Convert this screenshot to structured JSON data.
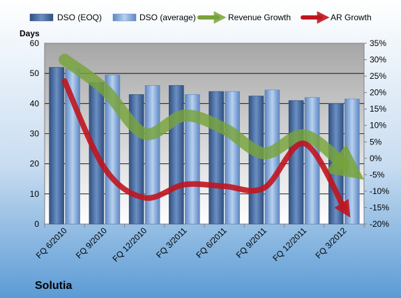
{
  "chart_data": {
    "type": "bar",
    "title": "Solutia",
    "ylabel_left": "Days",
    "categories": [
      "FQ 6/2010",
      "FQ 9/2010",
      "FQ 12/2010",
      "FQ 3/2011",
      "FQ 6/2011",
      "FQ 9/2011",
      "FQ 12/2011",
      "FQ 3/2012"
    ],
    "ylim_left": [
      0,
      60
    ],
    "yticks_left": [
      0,
      10,
      20,
      30,
      40,
      50,
      60
    ],
    "ylim_right": [
      -20,
      35
    ],
    "yticks_right": [
      -20,
      -15,
      -10,
      -5,
      0,
      5,
      10,
      15,
      20,
      25,
      30,
      35
    ],
    "yticks_right_labels": [
      "-20%",
      "-15%",
      "-10%",
      "-5%",
      "0%",
      "5%",
      "10%",
      "15%",
      "20%",
      "25%",
      "30%",
      "35%"
    ],
    "grid": true,
    "legend_position": "top",
    "bar_series": [
      {
        "name": "DSO (EOQ)",
        "axis": "left",
        "values": [
          52,
          47,
          43,
          46,
          44,
          42.5,
          41,
          40
        ],
        "color": "#4a6fa5"
      },
      {
        "name": "DSO (average)",
        "axis": "left",
        "values": [
          51.5,
          49.5,
          46,
          43,
          44,
          44.5,
          42,
          41.5
        ],
        "color": "#8db3e2"
      }
    ],
    "line_series": [
      {
        "name": "Revenue Growth",
        "axis": "right",
        "unit": "%",
        "values": [
          30,
          21,
          7.5,
          13,
          9,
          1.5,
          7,
          -2
        ],
        "color": "#77a33a"
      },
      {
        "name": "AR Growth",
        "axis": "right",
        "unit": "%",
        "values": [
          23.5,
          -3,
          -12,
          -8,
          -8.5,
          -9,
          4.5,
          -15
        ],
        "color": "#c0151f"
      }
    ]
  },
  "legend": {
    "items": [
      {
        "label": "DSO (EOQ)",
        "kind": "bar-dark"
      },
      {
        "label": "DSO (average)",
        "kind": "bar-light"
      },
      {
        "label": "Revenue Growth",
        "kind": "arrow-green"
      },
      {
        "label": "AR Growth",
        "kind": "arrow-red"
      }
    ]
  },
  "colors": {
    "plot_bg_top": "#a6a6a6",
    "plot_bg_bottom": "#ffffff",
    "page_bg_top": "#ffffff",
    "page_bg_bottom": "#5b9bd5"
  }
}
